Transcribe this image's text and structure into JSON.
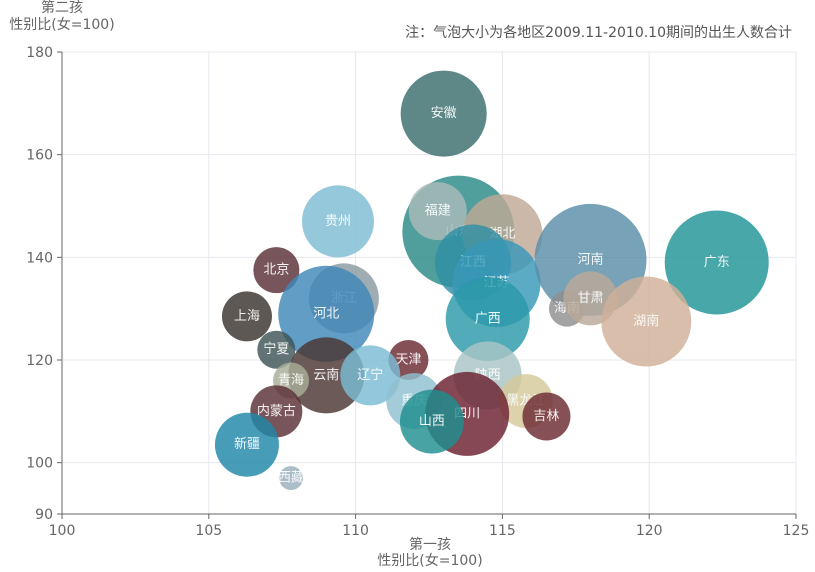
{
  "chart_data": {
    "type": "scatter",
    "note": "注：气泡大小为各地区2009.11-2010.10期间的出生人数合计",
    "xlabel_line1": "第一孩",
    "xlabel_line2": "性别比(女=100)",
    "ylabel_line1": "第二孩",
    "ylabel_line2": "性别比(女=100)",
    "xlim": [
      100,
      125
    ],
    "ylim": [
      90,
      180
    ],
    "xticks": [
      100,
      105,
      110,
      115,
      120,
      125
    ],
    "yticks": [
      90,
      100,
      120,
      140,
      160,
      180
    ],
    "grid": true,
    "points": [
      {
        "name": "安徽",
        "x": 113.0,
        "y": 168.0,
        "size": 43,
        "color": "#3b6c6c"
      },
      {
        "name": "贵州",
        "x": 109.4,
        "y": 147.0,
        "size": 36,
        "color": "#7fbcd4"
      },
      {
        "name": "山东",
        "x": 113.5,
        "y": 145.0,
        "size": 56,
        "color": "#2a8a86"
      },
      {
        "name": "福建",
        "x": 112.8,
        "y": 149.0,
        "size": 29,
        "color": "#a9b9b9"
      },
      {
        "name": "湖北",
        "x": 115.0,
        "y": 144.5,
        "size": 40,
        "color": "#bfa896"
      },
      {
        "name": "江西",
        "x": 114.0,
        "y": 139.0,
        "size": 38,
        "color": "#2f8fa3"
      },
      {
        "name": "江苏",
        "x": 114.8,
        "y": 135.0,
        "size": 44,
        "color": "#3898b8"
      },
      {
        "name": "广东",
        "x": 122.3,
        "y": 139.0,
        "size": 52,
        "color": "#1e9496"
      },
      {
        "name": "河南",
        "x": 118.0,
        "y": 139.5,
        "size": 56,
        "color": "#5a8ea8"
      },
      {
        "name": "海南",
        "x": 117.2,
        "y": 130.0,
        "size": 18,
        "color": "#8f8f8f"
      },
      {
        "name": "甘肃",
        "x": 118.0,
        "y": 132.0,
        "size": 27,
        "color": "#b9a99a"
      },
      {
        "name": "湖南",
        "x": 119.9,
        "y": 127.5,
        "size": 45,
        "color": "#d0b098"
      },
      {
        "name": "北京",
        "x": 107.3,
        "y": 137.5,
        "size": 23,
        "color": "#5a3036"
      },
      {
        "name": "浙江",
        "x": 109.6,
        "y": 132.0,
        "size": 35,
        "color": "#8a9aa0"
      },
      {
        "name": "河北",
        "x": 109.0,
        "y": 129.0,
        "size": 48,
        "color": "#3e88b8"
      },
      {
        "name": "上海",
        "x": 106.3,
        "y": 128.5,
        "size": 25,
        "color": "#3a3330"
      },
      {
        "name": "广西",
        "x": 114.5,
        "y": 128.0,
        "size": 42,
        "color": "#2b98a8"
      },
      {
        "name": "宁夏",
        "x": 107.3,
        "y": 122.0,
        "size": 19,
        "color": "#3e5456"
      },
      {
        "name": "天津",
        "x": 111.8,
        "y": 120.0,
        "size": 20,
        "color": "#6b2a32"
      },
      {
        "name": "云南",
        "x": 109.0,
        "y": 117.0,
        "size": 38,
        "color": "#4a3632"
      },
      {
        "name": "辽宁",
        "x": 110.5,
        "y": 117.0,
        "size": 30,
        "color": "#7bbcd4"
      },
      {
        "name": "青海",
        "x": 107.8,
        "y": 116.0,
        "size": 18,
        "color": "#a8ae98"
      },
      {
        "name": "陕西",
        "x": 114.5,
        "y": 117.0,
        "size": 34,
        "color": "#a9c4c4"
      },
      {
        "name": "重庆",
        "x": 112.0,
        "y": 112.0,
        "size": 28,
        "color": "#8fbfd0"
      },
      {
        "name": "黑龙江",
        "x": 115.8,
        "y": 112.0,
        "size": 27,
        "color": "#d4c898"
      },
      {
        "name": "吉林",
        "x": 116.5,
        "y": 109.0,
        "size": 24,
        "color": "#6b2a32"
      },
      {
        "name": "四川",
        "x": 113.8,
        "y": 109.5,
        "size": 42,
        "color": "#6b2030"
      },
      {
        "name": "山西",
        "x": 112.6,
        "y": 108.0,
        "size": 32,
        "color": "#1e8f90"
      },
      {
        "name": "内蒙古",
        "x": 107.3,
        "y": 110.0,
        "size": 26,
        "color": "#5a3036"
      },
      {
        "name": "新疆",
        "x": 106.3,
        "y": 103.5,
        "size": 32,
        "color": "#1e88a8"
      },
      {
        "name": "西藏",
        "x": 107.8,
        "y": 97.0,
        "size": 12,
        "color": "#98b0bc"
      }
    ]
  }
}
